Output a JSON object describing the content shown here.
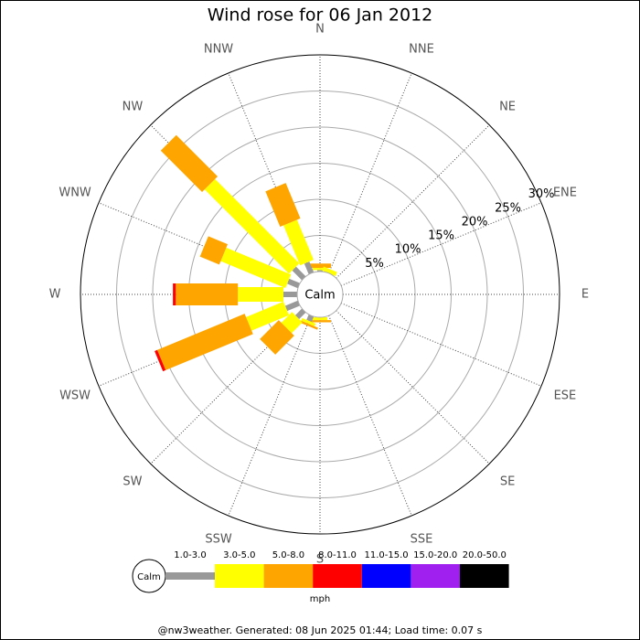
{
  "chart_data": {
    "type": "windrose",
    "title": "Wind rose for 06 Jan 2012",
    "categories": [
      "N",
      "NNE",
      "NE",
      "ENE",
      "E",
      "ESE",
      "SE",
      "SSE",
      "S",
      "SSW",
      "SW",
      "WSW",
      "W",
      "WNW",
      "NW",
      "NNW"
    ],
    "calm_label": "Calm",
    "unit": "mph",
    "footer": "@nw3weather. Generated: 08 Jun 2025 01:44; Load time: 0.07 s",
    "rlim": [
      0,
      30
    ],
    "rticks": [
      {
        "value": 5,
        "label": "5%"
      },
      {
        "value": 10,
        "label": "10%"
      },
      {
        "value": 15,
        "label": "15%"
      },
      {
        "value": 20,
        "label": "20%"
      },
      {
        "value": 25,
        "label": "25%"
      },
      {
        "value": 30,
        "label": "30%"
      }
    ],
    "series": [
      {
        "name": "1.0-3.0",
        "color": "#999999",
        "values": [
          0.2,
          0,
          0,
          0,
          0,
          0,
          0,
          0,
          0,
          0.8,
          1.3,
          1.9,
          1.9,
          1.6,
          1.9,
          1.6
        ]
      },
      {
        "name": "3.0-5.0",
        "color": "#ffff00",
        "values": [
          0.3,
          0.6,
          0,
          0,
          0,
          0,
          0,
          0,
          0.4,
          0.4,
          2.1,
          5.6,
          6.3,
          9.7,
          16.5,
          6.0
        ]
      },
      {
        "name": "5.0-8.0",
        "color": "#ffa500",
        "values": [
          0.6,
          0,
          0,
          0,
          0,
          0,
          0,
          0,
          0.3,
          0.3,
          3.7,
          13.1,
          8.6,
          2.9,
          8.1,
          5.3
        ]
      },
      {
        "name": "8.0-11.0",
        "color": "#ff0000",
        "values": [
          0,
          0,
          0,
          0,
          0,
          0,
          0,
          0,
          0,
          0,
          0,
          0.4,
          0.4,
          0,
          0,
          0
        ]
      },
      {
        "name": "11.0-15.0",
        "color": "#0000ff",
        "values": [
          0,
          0,
          0,
          0,
          0,
          0,
          0,
          0,
          0,
          0,
          0,
          0,
          0,
          0,
          0,
          0
        ]
      },
      {
        "name": "15.0-20.0",
        "color": "#a020f0",
        "values": [
          0,
          0,
          0,
          0,
          0,
          0,
          0,
          0,
          0,
          0,
          0,
          0,
          0,
          0,
          0,
          0
        ]
      },
      {
        "name": "20.0-50.0",
        "color": "#000000",
        "values": [
          0,
          0,
          0,
          0,
          0,
          0,
          0,
          0,
          0,
          0,
          0,
          0,
          0,
          0,
          0,
          0
        ]
      }
    ]
  }
}
